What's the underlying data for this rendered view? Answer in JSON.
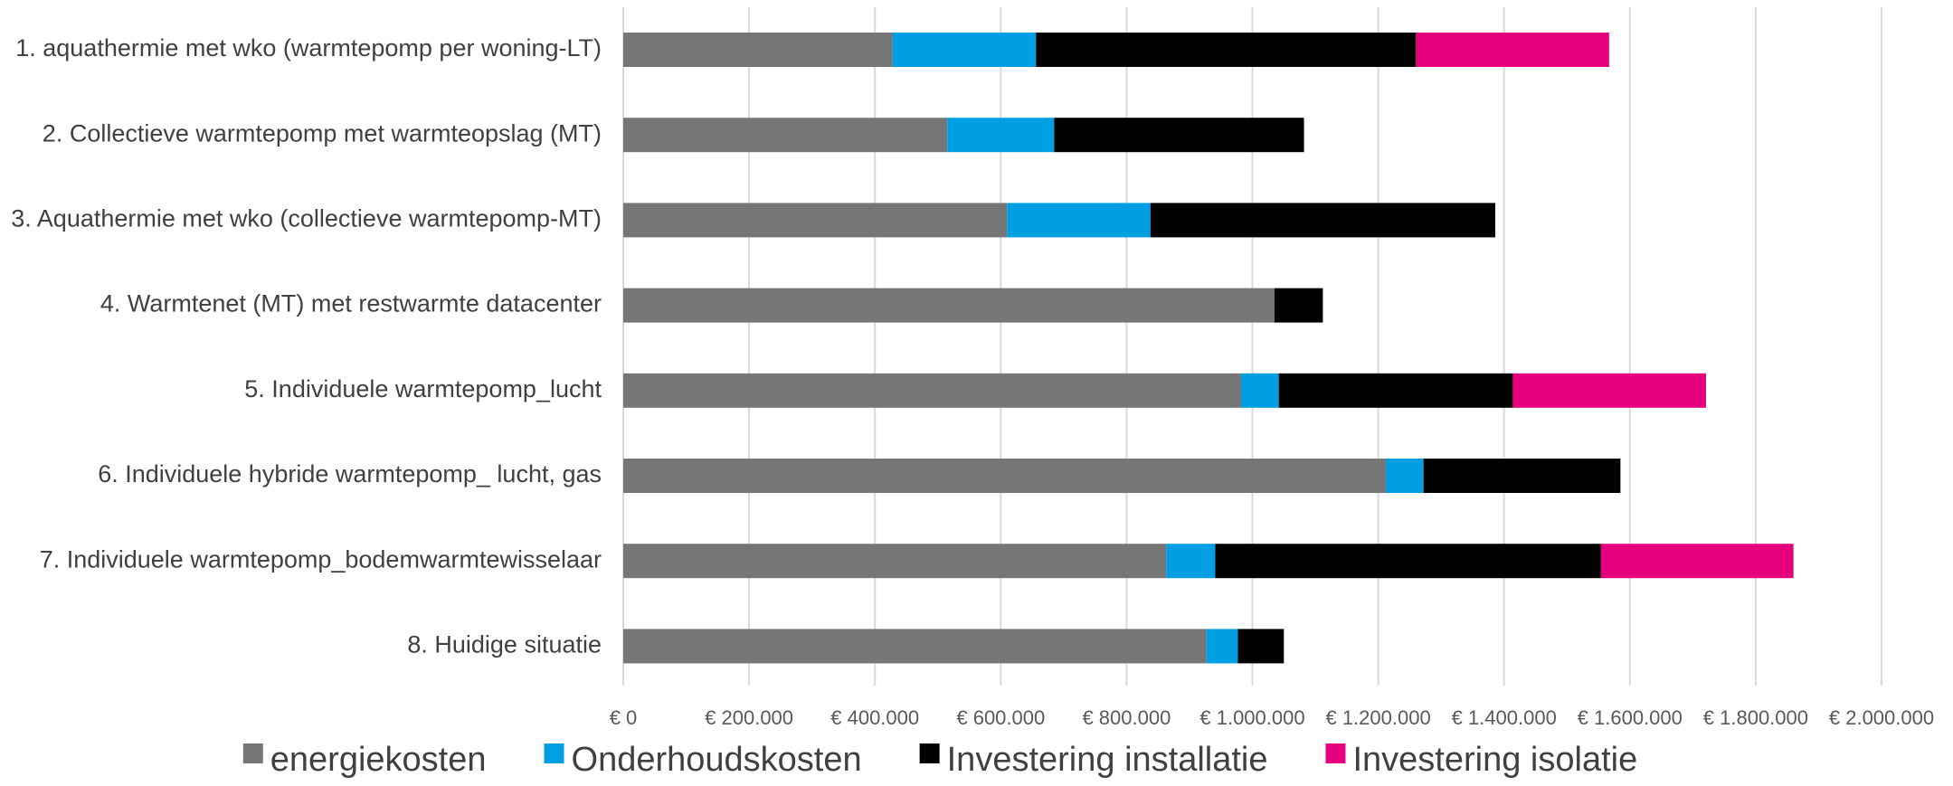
{
  "chart_data": {
    "type": "bar",
    "orientation": "horizontal",
    "stacked": true,
    "categories": [
      "1. aquathermie met wko (warmtepomp per woning-LT)",
      "2. Collectieve warmtepomp met warmteopslag (MT)",
      "3. Aquathermie met wko (collectieve warmtepomp-MT)",
      "4. Warmtenet (MT) met restwarmte datacenter",
      "5. Individuele warmtepomp_lucht",
      "6. Individuele hybride warmtepomp_ lucht, gas",
      "7. Individuele warmtepomp_bodemwarmtewisselaar",
      "8. Huidige situatie"
    ],
    "series": [
      {
        "name": "energiekosten",
        "color": "#767676",
        "values": [
          428000,
          515000,
          610000,
          1035000,
          982000,
          1212000,
          863000,
          927000
        ]
      },
      {
        "name": "Onderhoudskosten",
        "color": "#009fe3",
        "values": [
          228000,
          170000,
          228000,
          0,
          60000,
          60000,
          78000,
          50000
        ]
      },
      {
        "name": "Investering installatie",
        "color": "#000000",
        "values": [
          604000,
          397000,
          548000,
          77000,
          372000,
          313000,
          613000,
          73000
        ]
      },
      {
        "name": "Investering isolatie",
        "color": "#e6007e",
        "values": [
          307000,
          0,
          0,
          0,
          307000,
          0,
          306000,
          0
        ]
      }
    ],
    "xlim": [
      0,
      2000000
    ],
    "x_ticks": [
      0,
      200000,
      400000,
      600000,
      800000,
      1000000,
      1200000,
      1400000,
      1600000,
      1800000,
      2000000
    ],
    "x_tick_labels": [
      "€ 0",
      "€ 200.000",
      "€ 400.000",
      "€ 600.000",
      "€ 800.000",
      "€ 1.000.000",
      "€ 1.200.000",
      "€ 1.400.000",
      "€ 1.600.000",
      "€ 1.800.000",
      "€ 2.000.000"
    ],
    "grid": true,
    "legend_position": "bottom",
    "title": "",
    "xlabel": "",
    "ylabel": ""
  }
}
